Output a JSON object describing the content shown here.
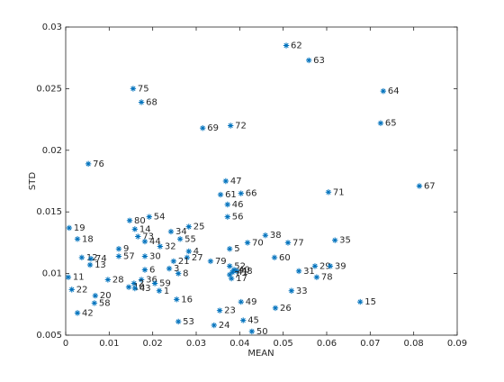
{
  "chart_data": {
    "type": "scatter",
    "xlabel": "MEAN",
    "ylabel": "STD",
    "color": "#0072bd",
    "xlim": [
      0,
      0.09
    ],
    "ylim": [
      0.005,
      0.03
    ],
    "xticks": [
      0,
      0.01,
      0.02,
      0.03,
      0.04,
      0.05,
      0.06,
      0.07,
      0.08,
      0.09
    ],
    "yticks": [
      0.005,
      0.01,
      0.015,
      0.02,
      0.025,
      0.03
    ],
    "point_labels": [
      "62",
      "63",
      "64",
      "65",
      "75",
      "68",
      "69",
      "72",
      "76",
      "67",
      "71",
      "47",
      "61",
      "66",
      "46",
      "56",
      "54",
      "80",
      "19",
      "18",
      "14",
      "73",
      "34",
      "25",
      "44",
      "55",
      "38",
      "70",
      "77",
      "35",
      "32",
      "5",
      "9",
      "4",
      "30",
      "57",
      "12",
      "74",
      "13",
      "27",
      "21",
      "79",
      "60",
      "52",
      "40",
      "41",
      "48",
      "29",
      "39",
      "31",
      "7",
      "17",
      "78",
      "6",
      "8",
      "3",
      "11",
      "28",
      "36",
      "2",
      "59",
      "10",
      "43",
      "1",
      "22",
      "20",
      "58",
      "42",
      "16",
      "33",
      "49",
      "23",
      "26",
      "15",
      "53",
      "24",
      "45",
      "50"
    ],
    "x": [
      0.0507,
      0.0559,
      0.073,
      0.0724,
      0.0155,
      0.0174,
      0.0315,
      0.0379,
      0.0052,
      0.0813,
      0.0604,
      0.0368,
      0.0356,
      0.0403,
      0.0372,
      0.0372,
      0.0192,
      0.0147,
      0.0008,
      0.0027,
      0.0159,
      0.0166,
      0.0242,
      0.0283,
      0.0182,
      0.0263,
      0.0459,
      0.0418,
      0.0511,
      0.0619,
      0.0217,
      0.0377,
      0.0122,
      0.0283,
      0.0182,
      0.0122,
      0.0037,
      0.0058,
      0.0056,
      0.0279,
      0.0248,
      0.0333,
      0.048,
      0.0377,
      0.0387,
      0.0383,
      0.0393,
      0.0573,
      0.0608,
      0.0536,
      0.0377,
      0.0381,
      0.0577,
      0.0182,
      0.0259,
      0.0238,
      0.0006,
      0.0097,
      0.0174,
      0.0157,
      0.0205,
      0.0145,
      0.0159,
      0.0215,
      0.0014,
      0.0068,
      0.0066,
      0.0027,
      0.0255,
      0.0519,
      0.0403,
      0.0354,
      0.0482,
      0.0677,
      0.0259,
      0.0341,
      0.0408,
      0.0428
    ],
    "values": [
      0.0285,
      0.0273,
      0.0248,
      0.0222,
      0.025,
      0.0239,
      0.0218,
      0.022,
      0.0189,
      0.0171,
      0.0166,
      0.0175,
      0.0164,
      0.0165,
      0.0156,
      0.0146,
      0.0146,
      0.0143,
      0.0137,
      0.0128,
      0.0136,
      0.013,
      0.0134,
      0.0138,
      0.0126,
      0.0128,
      0.0131,
      0.0125,
      0.0125,
      0.0127,
      0.0122,
      0.012,
      0.012,
      0.0118,
      0.0114,
      0.0114,
      0.0113,
      0.0112,
      0.0107,
      0.0113,
      0.011,
      0.011,
      0.0113,
      0.0106,
      0.0103,
      0.0101,
      0.0102,
      0.0106,
      0.0106,
      0.0102,
      0.0099,
      0.0096,
      0.0097,
      0.0103,
      0.01,
      0.0104,
      0.0097,
      0.0095,
      0.0095,
      0.0092,
      0.0092,
      0.0089,
      0.0088,
      0.0086,
      0.0087,
      0.0082,
      0.0076,
      0.0068,
      0.0079,
      0.0086,
      0.0077,
      0.007,
      0.0072,
      0.0077,
      0.0061,
      0.0058,
      0.0062,
      0.0053
    ]
  }
}
